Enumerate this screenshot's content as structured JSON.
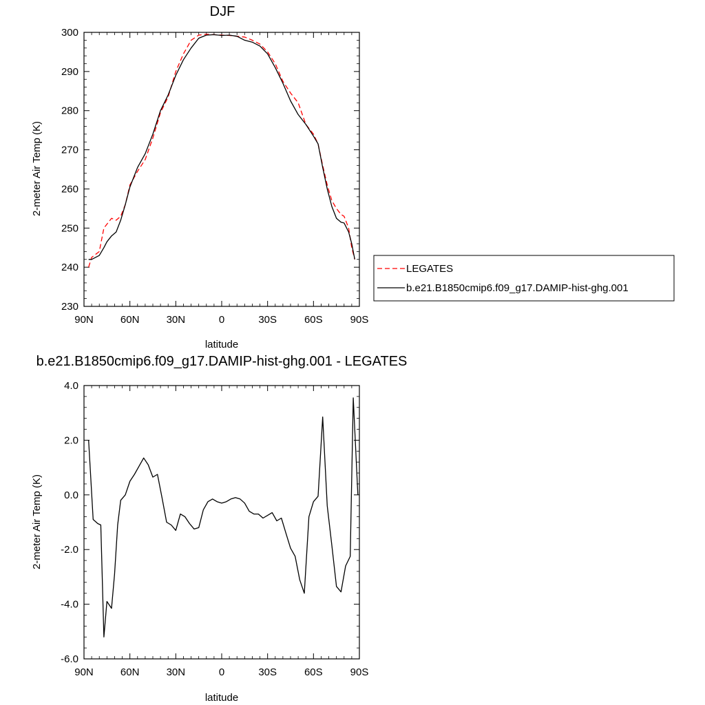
{
  "chart_data": [
    {
      "type": "line",
      "title": "DJF",
      "xlabel": "latitude",
      "ylabel": "2-meter Air Temp (K)",
      "xlim": [
        -90,
        90
      ],
      "ylim": [
        230,
        300
      ],
      "x_ticks": [
        -90,
        -60,
        -30,
        0,
        30,
        60,
        90
      ],
      "x_tick_labels": [
        "90N",
        "60N",
        "30N",
        "0",
        "30S",
        "60S",
        "90S"
      ],
      "y_ticks": [
        230,
        240,
        250,
        260,
        270,
        280,
        290,
        300
      ],
      "y_tick_labels": [
        "230",
        "240",
        "250",
        "260",
        "270",
        "280",
        "290",
        "300"
      ],
      "legend": "right",
      "series": [
        {
          "name": "LEGATES",
          "color": "#ff0000",
          "dash": "dashed",
          "x": [
            -87,
            -85,
            -80,
            -77,
            -75,
            -72,
            -69,
            -66,
            -63,
            -60,
            -55,
            -50,
            -45,
            -40,
            -35,
            -30,
            -25,
            -20,
            -15,
            -10,
            -5,
            0,
            5,
            10,
            15,
            20,
            25,
            30,
            35,
            40,
            45,
            50,
            55,
            60,
            63,
            66,
            69,
            72,
            75,
            78,
            80,
            83,
            85,
            87
          ],
          "y": [
            240,
            242.5,
            244,
            250,
            251,
            252.5,
            252,
            253,
            256,
            261,
            264.5,
            267.5,
            273,
            279.5,
            283.5,
            290,
            294.5,
            298,
            299.3,
            299.5,
            299.4,
            299.3,
            299.2,
            299,
            298.8,
            298,
            297,
            295,
            292,
            287.5,
            284.5,
            282,
            276.5,
            274,
            271.5,
            266,
            261,
            257,
            255,
            253.5,
            253,
            250,
            245,
            242
          ]
        },
        {
          "name": "b.e21.B1850cmip6.f09_g17.DAMIP-hist-ghg.001",
          "color": "#000000",
          "dash": "solid",
          "x": [
            -87,
            -85,
            -80,
            -77,
            -75,
            -72,
            -69,
            -66,
            -63,
            -60,
            -55,
            -50,
            -45,
            -40,
            -35,
            -30,
            -25,
            -20,
            -15,
            -10,
            -5,
            0,
            5,
            10,
            15,
            20,
            25,
            30,
            35,
            40,
            45,
            50,
            55,
            60,
            63,
            66,
            69,
            72,
            75,
            78,
            80,
            83,
            85,
            87
          ],
          "y": [
            242,
            242,
            243,
            245,
            246.5,
            248,
            249,
            252,
            256,
            260.5,
            265.5,
            269,
            274,
            280,
            284,
            289,
            293,
            296,
            298.5,
            299.3,
            299.4,
            299.2,
            299.3,
            299,
            298,
            297.5,
            296.5,
            294.5,
            291,
            287,
            282.5,
            279,
            276.5,
            273.5,
            271.5,
            265.5,
            260,
            255.5,
            252.5,
            251.5,
            251.3,
            249,
            246,
            242
          ]
        }
      ]
    },
    {
      "type": "line",
      "title": "b.e21.B1850cmip6.f09_g17.DAMIP-hist-ghg.001 - LEGATES",
      "xlabel": "latitude",
      "ylabel": "2-meter Air Temp (K)",
      "xlim": [
        -90,
        90
      ],
      "ylim": [
        -6,
        4
      ],
      "x_ticks": [
        -90,
        -60,
        -30,
        0,
        30,
        60,
        90
      ],
      "x_tick_labels": [
        "90N",
        "60N",
        "30N",
        "0",
        "30S",
        "60S",
        "90S"
      ],
      "y_ticks": [
        -6,
        -4,
        -2,
        0,
        2,
        4
      ],
      "y_tick_labels": [
        "-6.0",
        "-4.0",
        "-2.0",
        "0.0",
        "2.0",
        "4.0"
      ],
      "legend": "none",
      "series": [
        {
          "color": "#000000",
          "dash": "solid",
          "x": [
            -87,
            -84,
            -81,
            -79,
            -77,
            -75,
            -72,
            -70,
            -68,
            -66,
            -63,
            -60,
            -57,
            -54,
            -51,
            -48,
            -45,
            -42,
            -39,
            -36,
            -33,
            -30,
            -27,
            -24,
            -21,
            -18,
            -15,
            -12,
            -9,
            -6,
            -3,
            0,
            3,
            6,
            9,
            12,
            15,
            18,
            21,
            24,
            27,
            30,
            33,
            36,
            39,
            42,
            45,
            48,
            51,
            54,
            57,
            60,
            63,
            66,
            69,
            72,
            75,
            78,
            81,
            84,
            86,
            89
          ],
          "y": [
            2.0,
            -0.9,
            -1.05,
            -1.1,
            -5.2,
            -3.9,
            -4.15,
            -2.9,
            -1.1,
            -0.2,
            0.0,
            0.5,
            0.75,
            1.05,
            1.35,
            1.1,
            0.65,
            0.75,
            -0.1,
            -1.0,
            -1.1,
            -1.3,
            -0.7,
            -0.8,
            -1.05,
            -1.25,
            -1.2,
            -0.55,
            -0.25,
            -0.15,
            -0.25,
            -0.3,
            -0.25,
            -0.15,
            -0.1,
            -0.15,
            -0.3,
            -0.6,
            -0.7,
            -0.7,
            -0.85,
            -0.75,
            -0.65,
            -0.95,
            -0.85,
            -1.4,
            -1.95,
            -2.25,
            -3.1,
            -3.6,
            -0.8,
            -0.25,
            -0.05,
            2.85,
            -0.4,
            -1.85,
            -3.35,
            -3.55,
            -2.6,
            -2.25,
            3.55,
            0.0
          ]
        }
      ]
    }
  ]
}
